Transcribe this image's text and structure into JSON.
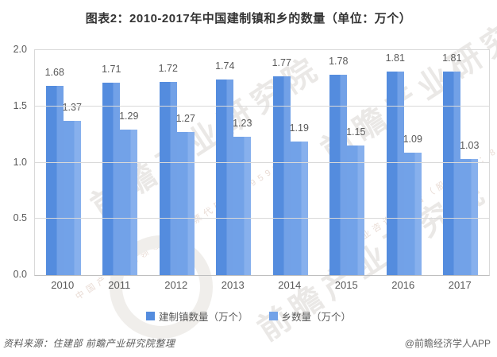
{
  "chart_data": {
    "type": "bar",
    "title": "图表2：2010-2017年中国建制镇和乡的数量（单位：万个）",
    "categories": [
      "2010",
      "2011",
      "2012",
      "2013",
      "2014",
      "2015",
      "2016",
      "2017"
    ],
    "series": [
      {
        "name": "建制镇数量（万个）",
        "color": "#548CDE",
        "color_light": "#72A1E7",
        "values": [
          1.68,
          1.71,
          1.72,
          1.74,
          1.77,
          1.78,
          1.81,
          1.81
        ]
      },
      {
        "name": "乡数量（万个）",
        "color": "#72A2E8",
        "color_light": "#87B0ED",
        "values": [
          1.37,
          1.29,
          1.27,
          1.23,
          1.19,
          1.15,
          1.09,
          1.03
        ]
      }
    ],
    "ylim": [
      0,
      2
    ],
    "yticks": [
      "0.0",
      "0.5",
      "1.0",
      "1.5",
      "2.0"
    ],
    "grid": true,
    "legend_position": "bottom"
  },
  "footer": {
    "source": "资料来源：住建部  前瞻产业研究院整理",
    "credit": "@前瞻经济学人APP"
  },
  "watermark": {
    "text": "前瞻产业研究院",
    "subtext": "中国产业咨询领导者（股票代码：839599）"
  }
}
